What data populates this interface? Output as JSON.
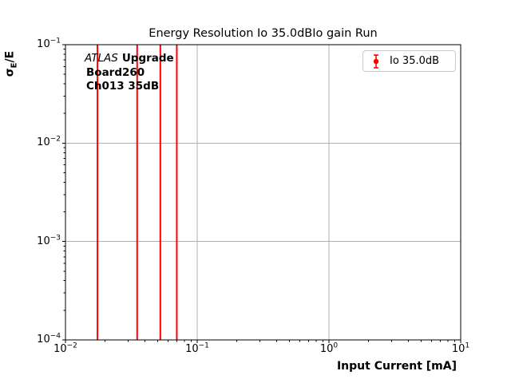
{
  "figure": {
    "ylabel_parts": {
      "sigma": "σ",
      "sub": "E",
      "rest": "/E"
    },
    "annotation": {
      "experiment": "ATLAS",
      "label": "Upgrade",
      "line2": "Board260",
      "line3": "Ch013 35dB"
    }
  },
  "chart_data": {
    "type": "errorbar",
    "title": "Energy Resolution Io 35.0dBIo gain Run",
    "xlabel": "Input Current [mA]",
    "ylabel": "sigma_E/E",
    "x_scale": "log",
    "y_scale": "log",
    "xlim": [
      0.01,
      10
    ],
    "ylim": [
      0.0001,
      0.1
    ],
    "x_tick_labels": [
      "10^−2",
      "10^−1",
      "10^0",
      "10^1"
    ],
    "y_tick_labels": [
      "10^−1",
      "10^−2",
      "10^−3",
      "10^−4"
    ],
    "grid": true,
    "legend_position": "upper right",
    "series": [
      {
        "name": "Io 35.0dB",
        "color": "#ff0000",
        "marker": "circle-with-errorbar",
        "x": [
          0.0175,
          0.035,
          0.0525,
          0.07
        ],
        "errorbar_note": "vertical error bars span the full visible y range 1e-4 to 1e-1"
      }
    ],
    "annotations": [
      "ATLAS Upgrade",
      "Board260",
      "Ch013 35dB"
    ]
  },
  "colors": {
    "series": "#ff0000",
    "grid": "#b0b0b0",
    "axes": "#000000",
    "legend_border": "#cccccc",
    "background": "#ffffff"
  }
}
